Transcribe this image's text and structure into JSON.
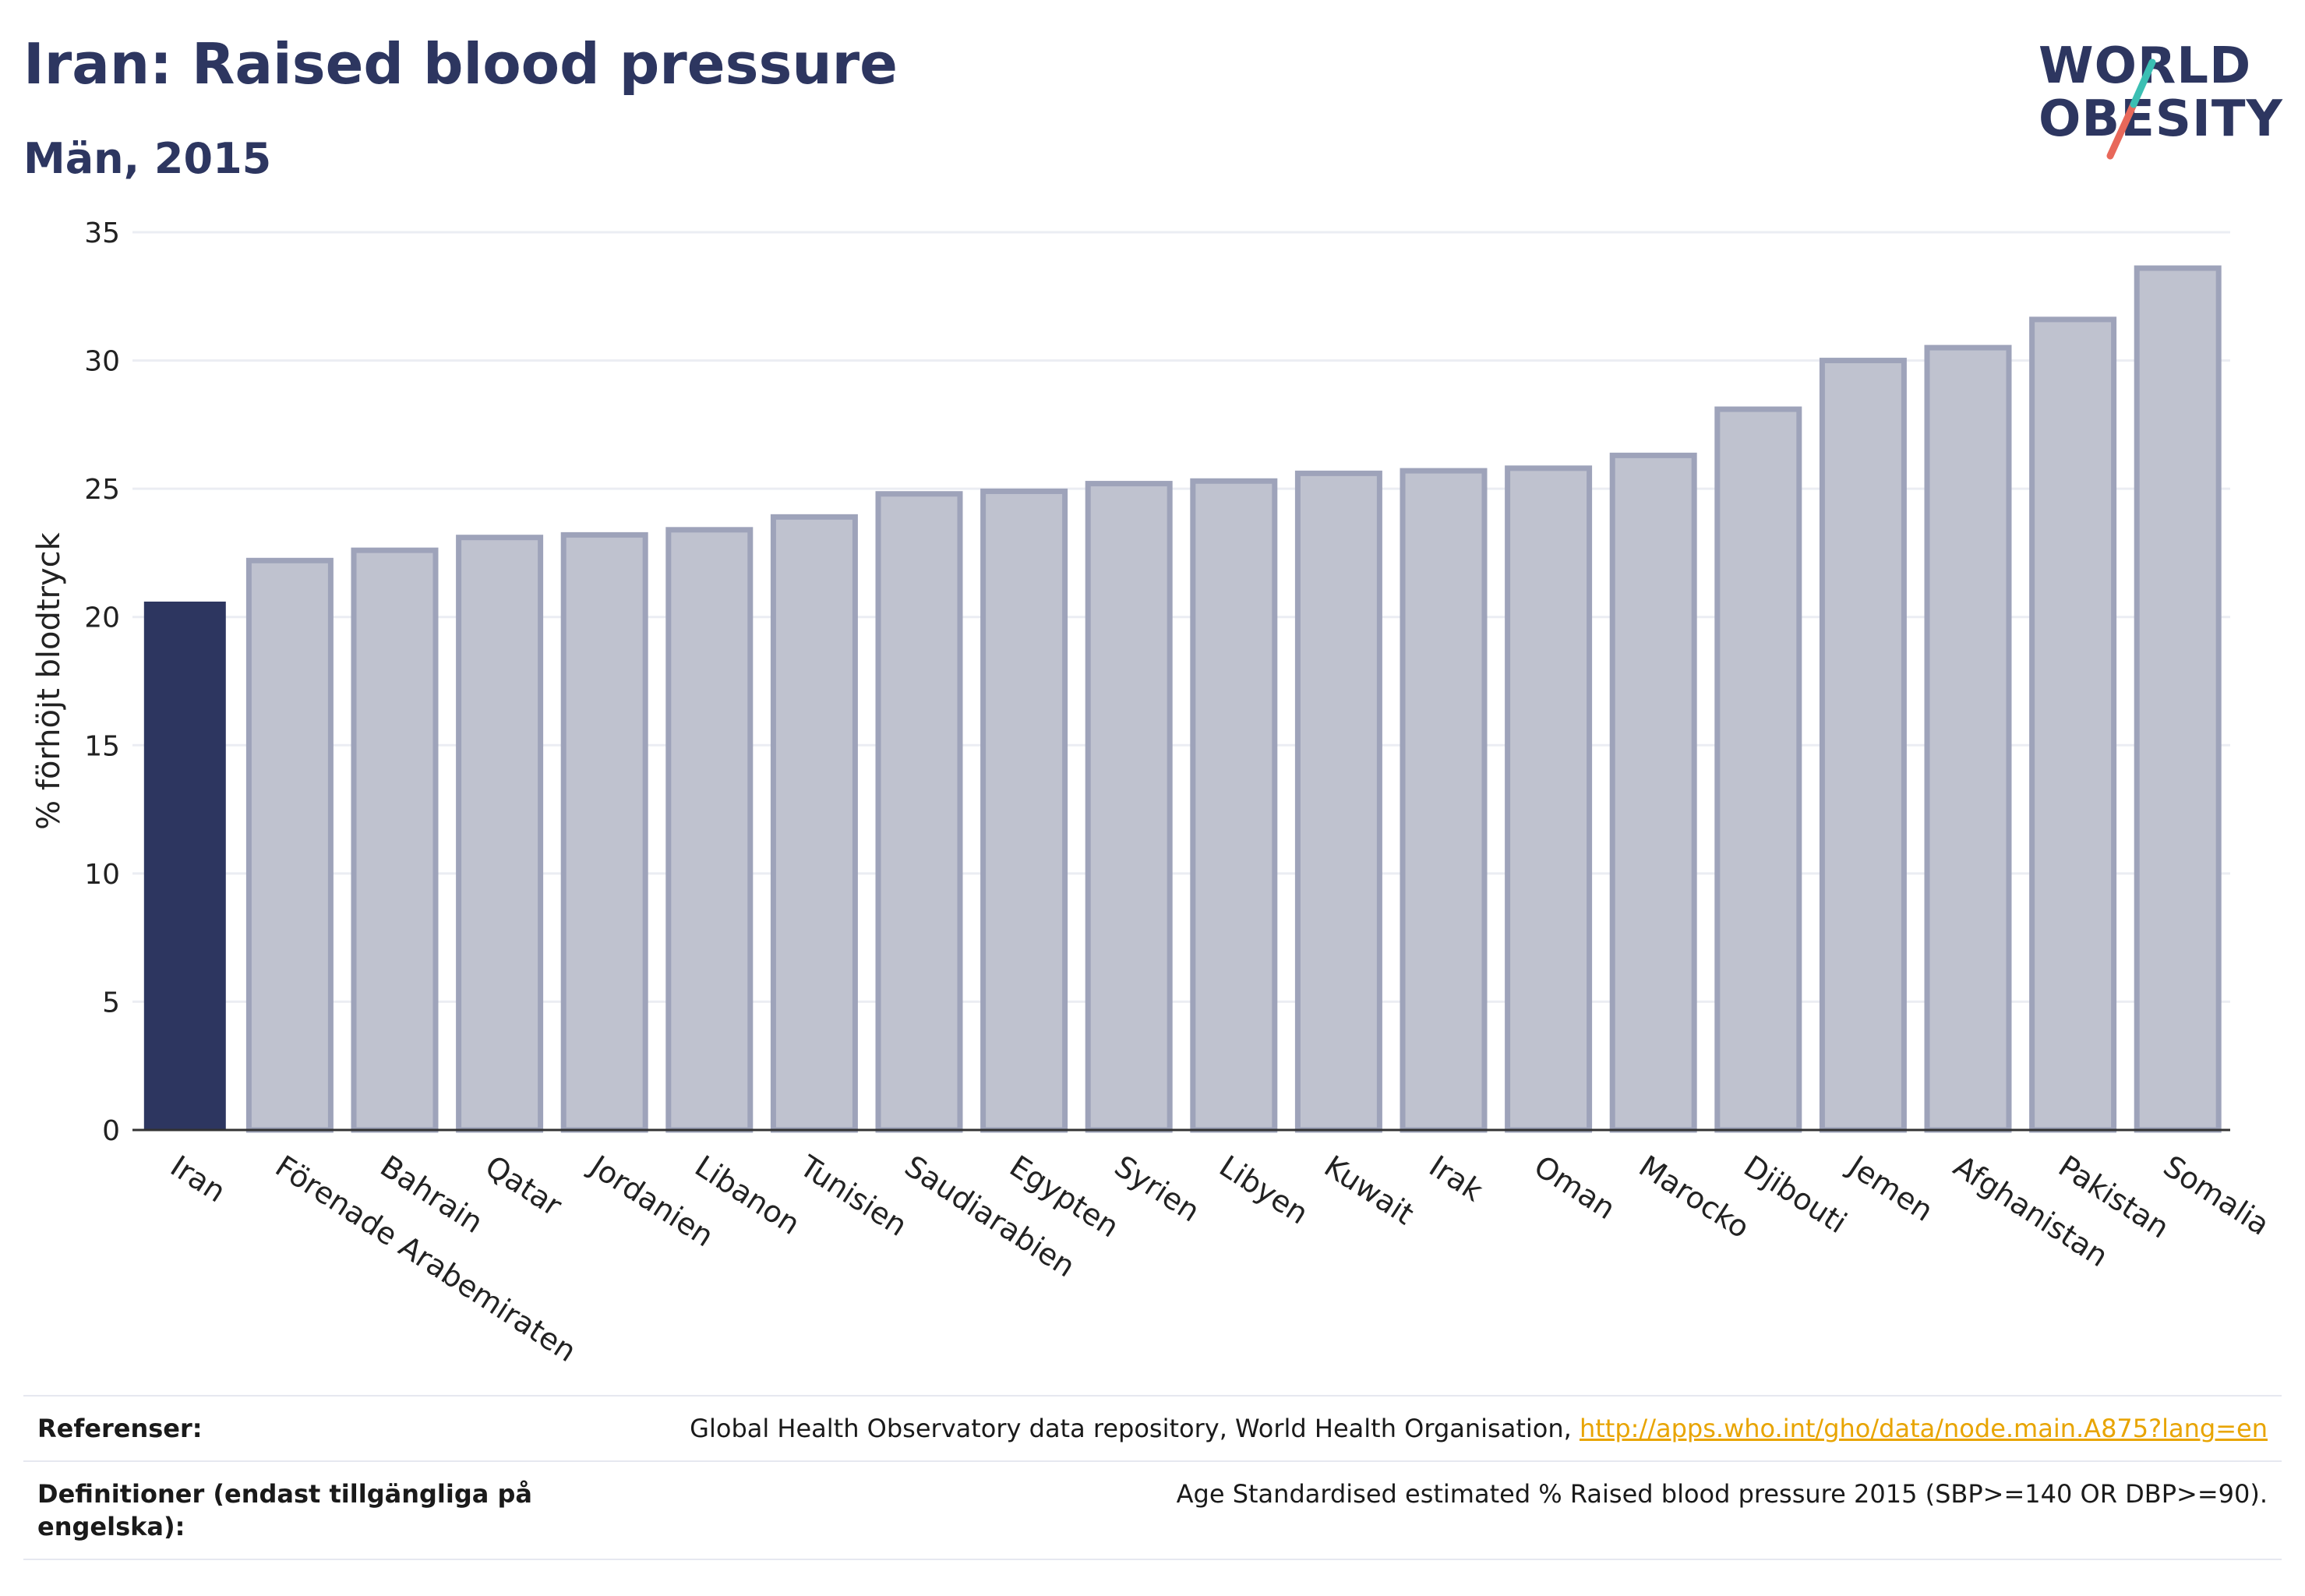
{
  "title": "Iran: Raised blood pressure",
  "subtitle": "Män, 2015",
  "logo": {
    "line1": "WORLD",
    "line2": "OBESITY"
  },
  "colors": {
    "highlight": "#2d3660",
    "bar": "#bfc2cf",
    "bar_edge": "#9ea3ba",
    "grid": "#ebedf3",
    "axis": "#333333",
    "teal": "#3bbfb3",
    "coral": "#e8685a"
  },
  "chart_data": {
    "type": "bar",
    "ylabel": "% förhöjt blodtryck",
    "xlabel": "",
    "ylim": [
      0,
      35
    ],
    "yticks": [
      0,
      5,
      10,
      15,
      20,
      25,
      30,
      35
    ],
    "grid": true,
    "highlight": "Iran",
    "categories": [
      "Iran",
      "Förenade Arabemiraten",
      "Bahrain",
      "Qatar",
      "Jordanien",
      "Libanon",
      "Tunisien",
      "Saudiarabien",
      "Egypten",
      "Syrien",
      "Libyen",
      "Kuwait",
      "Irak",
      "Oman",
      "Marocko",
      "Djibouti",
      "Jemen",
      "Afghanistan",
      "Pakistan",
      "Somalia"
    ],
    "values": [
      20.6,
      22.2,
      22.6,
      23.1,
      23.2,
      23.4,
      23.9,
      24.8,
      24.9,
      25.2,
      25.3,
      25.6,
      25.7,
      25.8,
      26.3,
      28.1,
      30.0,
      30.5,
      31.6,
      33.6
    ]
  },
  "footer": {
    "references_label": "Referenser:",
    "references_text": "Global Health Observatory data repository, World Health Organisation, ",
    "references_link": "http://apps.who.int/gho/data/node.main.A875?lang=en",
    "definitions_label_1": "Definitioner (endast tillgängliga på",
    "definitions_label_2": "engelska):",
    "definitions_text": "Age Standardised estimated % Raised blood pressure 2015 (SBP>=140 OR DBP>=90)."
  }
}
